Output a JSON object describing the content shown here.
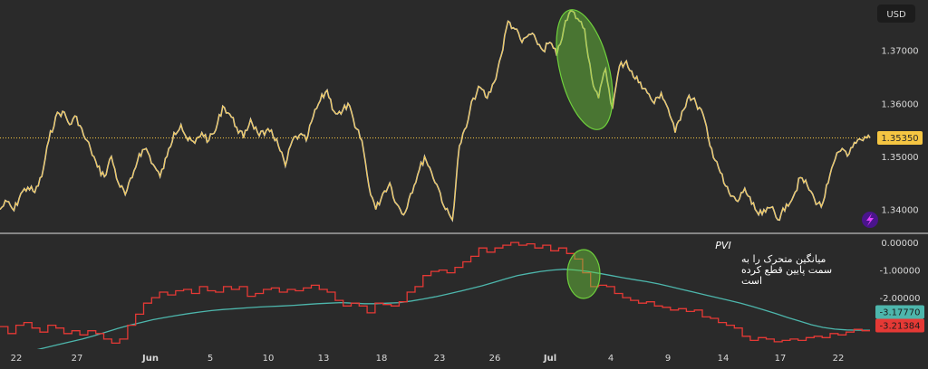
{
  "chart_data": [
    {
      "type": "line",
      "panel": "price",
      "currency": "USD",
      "ylim": [
        1.3355,
        1.3795
      ],
      "yticks": [
        1.34,
        1.35,
        1.36,
        1.37
      ],
      "ytick_labels": [
        "1.34000",
        "1.35000",
        "1.36000",
        "1.37000"
      ],
      "current_value": 1.3535,
      "current_label": "1.35350",
      "series": [
        {
          "color": "#f5c542",
          "values": [
            1.34,
            1.3415,
            1.3398,
            1.343,
            1.3442,
            1.3432,
            1.3462,
            1.353,
            1.3575,
            1.3585,
            1.356,
            1.3575,
            1.354,
            1.3515,
            1.348,
            1.3462,
            1.35,
            1.345,
            1.3428,
            1.346,
            1.3505,
            1.3515,
            1.3485,
            1.3462,
            1.35,
            1.3545,
            1.356,
            1.353,
            1.3525,
            1.3545,
            1.353,
            1.355,
            1.3595,
            1.358,
            1.3555,
            1.3535,
            1.357,
            1.3545,
            1.354,
            1.355,
            1.352,
            1.3482,
            1.353,
            1.354,
            1.353,
            1.3575,
            1.3605,
            1.3625,
            1.3585,
            1.358,
            1.36,
            1.3555,
            1.353,
            1.3445,
            1.34,
            1.343,
            1.345,
            1.341,
            1.339,
            1.343,
            1.3465,
            1.35,
            1.347,
            1.344,
            1.34,
            1.338,
            1.352,
            1.3555,
            1.361,
            1.363,
            1.361,
            1.364,
            1.369,
            1.3755,
            1.374,
            1.3715,
            1.373,
            1.372,
            1.37,
            1.3715,
            1.369,
            1.374,
            1.3775,
            1.376,
            1.374,
            1.365,
            1.361,
            1.3665,
            1.359,
            1.367,
            1.368,
            1.365,
            1.364,
            1.362,
            1.36,
            1.362,
            1.359,
            1.3545,
            1.3585,
            1.3615,
            1.36,
            1.358,
            1.352,
            1.349,
            1.345,
            1.3425,
            1.3415,
            1.344,
            1.341,
            1.339,
            1.3395,
            1.3405,
            1.338,
            1.341,
            1.3425,
            1.346,
            1.3445,
            1.342,
            1.3405,
            1.345,
            1.3495,
            1.3515,
            1.3505,
            1.3525,
            1.353,
            1.3535
          ]
        }
      ],
      "annotation": {
        "type": "ellipse",
        "color": "#6fd13c",
        "x_range": [
          "Jul",
          "4"
        ]
      }
    },
    {
      "type": "line",
      "panel": "indicator",
      "title": "PVI",
      "annotation_text": [
        "میانگین متحرک را به",
        "سمت پایین قطع کرده",
        "است"
      ],
      "ylim": [
        -3.8,
        0.2
      ],
      "yticks": [
        0.0,
        -1.0,
        -2.0
      ],
      "ytick_labels": [
        "0.00000",
        "-1.00000",
        "-2.00000"
      ],
      "series": [
        {
          "color": "#e53935",
          "current_label": "-3.21384",
          "values": [
            -3.05,
            -3.3,
            -3.0,
            -2.9,
            -3.1,
            -3.25,
            -3.0,
            -3.1,
            -3.3,
            -3.2,
            -3.35,
            -3.2,
            -3.3,
            -3.5,
            -3.65,
            -3.5,
            -3.0,
            -2.6,
            -2.2,
            -2.0,
            -1.8,
            -1.9,
            -1.75,
            -1.7,
            -1.85,
            -1.6,
            -1.75,
            -1.8,
            -1.6,
            -1.7,
            -1.6,
            -1.95,
            -1.85,
            -1.7,
            -1.65,
            -1.8,
            -1.7,
            -1.75,
            -1.65,
            -1.55,
            -1.7,
            -1.8,
            -2.1,
            -2.3,
            -2.2,
            -2.3,
            -2.55,
            -2.2,
            -2.25,
            -2.3,
            -2.15,
            -1.8,
            -1.6,
            -1.2,
            -1.05,
            -1.0,
            -1.1,
            -0.9,
            -0.7,
            -0.5,
            -0.2,
            -0.35,
            -0.2,
            -0.1,
            0.0,
            -0.1,
            -0.05,
            -0.2,
            -0.1,
            -0.3,
            -0.2,
            -0.4,
            -0.6,
            -1.1,
            -1.6,
            -1.55,
            -1.6,
            -1.85,
            -2.0,
            -2.1,
            -2.2,
            -2.15,
            -2.3,
            -2.35,
            -2.45,
            -2.4,
            -2.5,
            -2.45,
            -2.7,
            -2.75,
            -2.9,
            -3.0,
            -3.1,
            -3.4,
            -3.55,
            -3.45,
            -3.5,
            -3.6,
            -3.55,
            -3.5,
            -3.55,
            -3.45,
            -3.4,
            -3.45,
            -3.3,
            -3.35,
            -3.25,
            -3.15,
            -3.2,
            -3.21
          ]
        },
        {
          "color": "#4db6ac",
          "current_label": "-3.17770",
          "values": [
            -4.2,
            -4.1,
            -4.0,
            -3.9,
            -3.8,
            -3.7,
            -3.6,
            -3.5,
            -3.38,
            -3.25,
            -3.12,
            -3.0,
            -2.9,
            -2.8,
            -2.72,
            -2.65,
            -2.58,
            -2.52,
            -2.47,
            -2.43,
            -2.4,
            -2.37,
            -2.34,
            -2.32,
            -2.3,
            -2.28,
            -2.25,
            -2.22,
            -2.2,
            -2.18,
            -2.2,
            -2.22,
            -2.22,
            -2.2,
            -2.18,
            -2.12,
            -2.05,
            -1.97,
            -1.88,
            -1.78,
            -1.68,
            -1.57,
            -1.45,
            -1.32,
            -1.2,
            -1.12,
            -1.05,
            -1.0,
            -0.97,
            -1.0,
            -1.05,
            -1.12,
            -1.2,
            -1.28,
            -1.35,
            -1.42,
            -1.5,
            -1.6,
            -1.7,
            -1.8,
            -1.9,
            -2.0,
            -2.1,
            -2.2,
            -2.32,
            -2.45,
            -2.58,
            -2.72,
            -2.85,
            -2.98,
            -3.08,
            -3.14,
            -3.17,
            -3.18,
            -3.18
          ]
        }
      ]
    }
  ],
  "x_axis": {
    "labels": [
      {
        "text": "22",
        "month": false
      },
      {
        "text": "27",
        "month": false
      },
      {
        "text": "Jun",
        "month": true
      },
      {
        "text": "5",
        "month": false
      },
      {
        "text": "10",
        "month": false
      },
      {
        "text": "13",
        "month": false
      },
      {
        "text": "18",
        "month": false
      },
      {
        "text": "23",
        "month": false
      },
      {
        "text": "26",
        "month": false
      },
      {
        "text": "Jul",
        "month": true
      },
      {
        "text": "4",
        "month": false
      },
      {
        "text": "9",
        "month": false
      },
      {
        "text": "14",
        "month": false
      },
      {
        "text": "17",
        "month": false
      },
      {
        "text": "22",
        "month": false
      }
    ]
  },
  "colors": {
    "background": "#2a2a2a",
    "text": "#d8d8d8",
    "price_line": "#f5c542",
    "price_badge": "#f5c542",
    "pvi": "#e53935",
    "ma": "#4db6ac",
    "highlight": "#6fd13c",
    "separator": "#bdbdbd",
    "lightning_bg": "#4a148c",
    "lightning": "#e040fb"
  },
  "icons": [
    "lightning-icon"
  ]
}
